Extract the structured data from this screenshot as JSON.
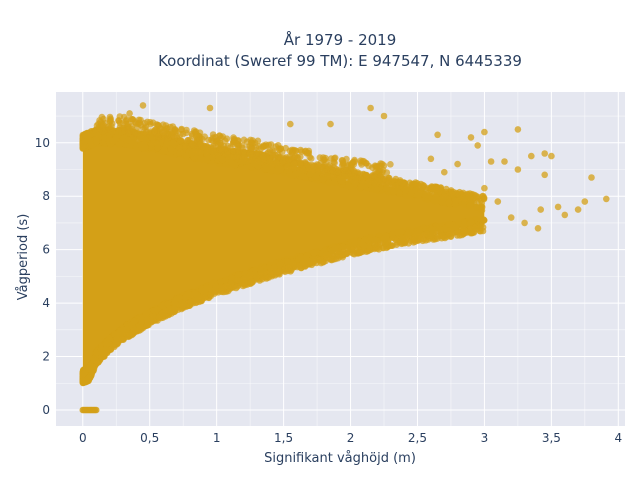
{
  "chart_data": {
    "type": "scatter",
    "title_line1": "År 1979 - 2019",
    "title_line2": "Koordinat (Sweref 99 TM): E 947547, N 6445339",
    "xlabel": "Signifikant våghöjd (m)",
    "ylabel": "Vågperiod (s)",
    "xlim": [
      -0.2,
      4.05
    ],
    "ylim": [
      -0.6,
      11.9
    ],
    "x_ticks": [
      0,
      0.5,
      1,
      1.5,
      2,
      2.5,
      3,
      3.5,
      4
    ],
    "x_tick_labels": [
      "0",
      "0,5",
      "1",
      "1,5",
      "2",
      "2,5",
      "3",
      "3,5",
      "4"
    ],
    "y_ticks": [
      0,
      2,
      4,
      6,
      8,
      10
    ],
    "y_tick_labels": [
      "0",
      "2",
      "4",
      "6",
      "8",
      "10"
    ],
    "grid": true,
    "marker_color": "#D4A017",
    "plot_bg": "#E5E7F0",
    "envelope": {
      "note_points_are_sampled_from_band": true,
      "x": [
        0.0,
        0.05,
        0.1,
        0.2,
        0.3,
        0.4,
        0.5,
        0.7,
        1.0,
        1.3,
        1.5,
        1.8,
        2.0,
        2.3,
        2.5,
        2.8,
        3.0
      ],
      "upper": [
        10.2,
        10.3,
        10.4,
        10.4,
        10.4,
        10.3,
        10.2,
        10.0,
        9.7,
        9.5,
        9.3,
        9.0,
        8.8,
        8.6,
        8.4,
        8.1,
        7.9
      ],
      "lower": [
        1.1,
        1.2,
        1.8,
        2.3,
        2.7,
        3.0,
        3.3,
        3.8,
        4.4,
        4.9,
        5.2,
        5.6,
        5.9,
        6.2,
        6.4,
        6.6,
        6.8
      ]
    },
    "zero_points": {
      "x_from": 0.0,
      "x_to": 0.1,
      "y": 0
    },
    "outliers": [
      {
        "x": 0.45,
        "y": 11.4
      },
      {
        "x": 0.35,
        "y": 11.1
      },
      {
        "x": 0.95,
        "y": 11.3
      },
      {
        "x": 2.15,
        "y": 11.3
      },
      {
        "x": 2.25,
        "y": 11.0
      },
      {
        "x": 1.55,
        "y": 10.7
      },
      {
        "x": 1.85,
        "y": 10.7
      },
      {
        "x": 2.65,
        "y": 10.3
      },
      {
        "x": 2.9,
        "y": 10.2
      },
      {
        "x": 3.0,
        "y": 10.4
      },
      {
        "x": 3.25,
        "y": 10.5
      },
      {
        "x": 2.95,
        "y": 9.9
      },
      {
        "x": 3.05,
        "y": 9.3
      },
      {
        "x": 3.15,
        "y": 9.3
      },
      {
        "x": 3.35,
        "y": 9.5
      },
      {
        "x": 3.45,
        "y": 9.6
      },
      {
        "x": 3.5,
        "y": 9.5
      },
      {
        "x": 3.45,
        "y": 8.8
      },
      {
        "x": 3.55,
        "y": 7.6
      },
      {
        "x": 3.6,
        "y": 7.3
      },
      {
        "x": 3.7,
        "y": 7.5
      },
      {
        "x": 3.75,
        "y": 7.8
      },
      {
        "x": 3.8,
        "y": 8.7
      },
      {
        "x": 3.91,
        "y": 7.9
      },
      {
        "x": 3.42,
        "y": 7.5
      },
      {
        "x": 3.3,
        "y": 7.0
      },
      {
        "x": 3.2,
        "y": 7.2
      },
      {
        "x": 3.4,
        "y": 6.8
      },
      {
        "x": 3.1,
        "y": 7.8
      },
      {
        "x": 3.0,
        "y": 8.3
      },
      {
        "x": 2.8,
        "y": 9.2
      },
      {
        "x": 2.7,
        "y": 8.9
      },
      {
        "x": 2.6,
        "y": 9.4
      },
      {
        "x": 3.25,
        "y": 9.0
      }
    ]
  }
}
